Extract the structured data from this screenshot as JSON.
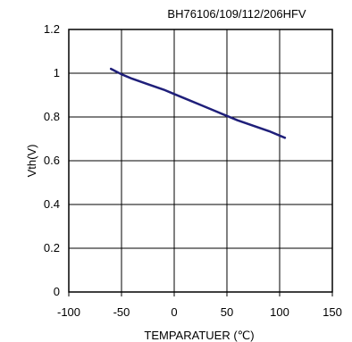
{
  "chart_data": {
    "type": "line",
    "title": "BH76106/109/112/206HFV",
    "xlabel": "TEMPARATUER (℃)",
    "ylabel": "Vth(V)",
    "xlim": [
      -100,
      150
    ],
    "ylim": [
      0,
      1.2
    ],
    "xticks": [
      -100,
      -50,
      0,
      50,
      100,
      150
    ],
    "yticks": [
      0,
      0.2,
      0.4,
      0.6,
      0.8,
      1,
      1.2
    ],
    "xtick_labels": [
      "-100",
      "-50",
      "0",
      "50",
      "100",
      "150"
    ],
    "ytick_labels": [
      "0",
      "0.2",
      "0.4",
      "0.6",
      "0.8",
      "1",
      "1.2"
    ],
    "grid": true,
    "colors": {
      "series": "#1f1f7a",
      "grid": "#000000"
    },
    "series": [
      {
        "x": [
          -60,
          -50,
          -40,
          -25,
          -10,
          0,
          10,
          25,
          40,
          50,
          60,
          75,
          90,
          105
        ],
        "y": [
          1.02,
          0.995,
          0.975,
          0.95,
          0.925,
          0.905,
          0.885,
          0.855,
          0.825,
          0.805,
          0.785,
          0.76,
          0.735,
          0.705
        ]
      }
    ]
  }
}
